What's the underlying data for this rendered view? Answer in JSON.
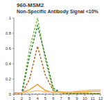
{
  "chart_data": {
    "type": "line",
    "title": "960-MSM2",
    "subtitle": "Non-Specific Antibody Signal <10%",
    "categories": [
      "1",
      "2",
      "3",
      "4",
      "5",
      "6",
      "7",
      "8",
      "9",
      "10",
      "11",
      "12"
    ],
    "series": [
      {
        "color": "#7cc24a",
        "line_style": "dashed",
        "values": [
          0,
          0.01,
          0.6,
          1.0,
          0.45,
          0.05,
          0.02,
          0.02,
          0.01,
          0.01,
          0.01,
          0.01
        ]
      },
      {
        "color": "#2e7d32",
        "line_style": "dashed",
        "values": [
          0,
          0.01,
          0.5,
          0.9,
          0.5,
          0.08,
          0.02,
          0.01,
          0.01,
          0.01,
          0.01,
          0.01
        ]
      },
      {
        "color": "#b5651d",
        "line_style": "dashed",
        "values": [
          0,
          0.01,
          0.2,
          0.63,
          0.25,
          0.05,
          0.02,
          0.01,
          0.01,
          0.01,
          0.01,
          0.01
        ]
      },
      {
        "color": "#f0a030",
        "line_style": "solid",
        "values": [
          0.02,
          0.02,
          0.06,
          0.13,
          0.05,
          0.02,
          0.03,
          0.03,
          0.03,
          0.03,
          0.04,
          0.04
        ]
      },
      {
        "color": "#f5c08a",
        "line_style": "solid",
        "values": [
          0.01,
          0.02,
          0.03,
          0.05,
          0.03,
          0.03,
          0.02,
          0.03,
          0.04,
          0.05,
          0.06,
          0.06
        ]
      },
      {
        "color": "#3a78c3",
        "line_style": "dashed",
        "values": [
          0,
          0,
          0,
          0,
          0,
          0,
          0,
          0,
          0,
          0,
          0,
          0
        ]
      }
    ],
    "ylim": [
      0,
      1
    ],
    "yticks": [
      0,
      0.2,
      0.4,
      0.6,
      0.8,
      1
    ],
    "grid": false
  }
}
